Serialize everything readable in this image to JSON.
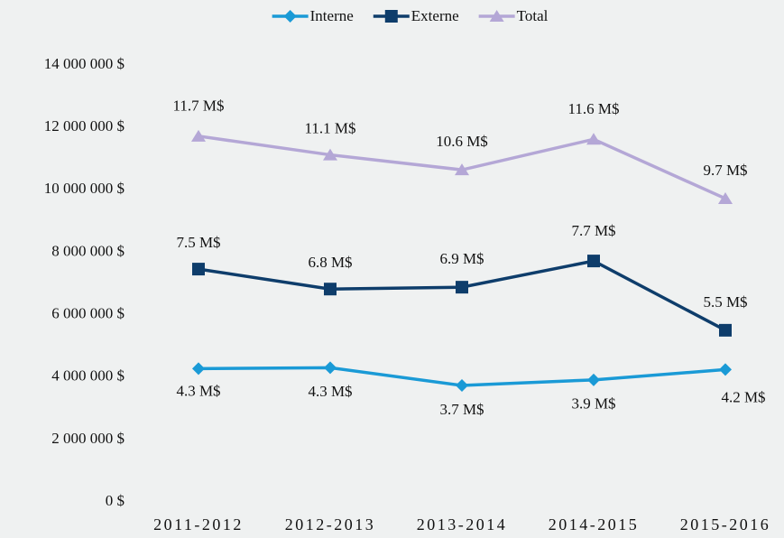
{
  "chart_data": {
    "type": "line",
    "categories": [
      "2011-2012",
      "2012-2013",
      "2013-2014",
      "2014-2015",
      "2015-2016"
    ],
    "series": [
      {
        "name": "Interne",
        "color": "#1a9ad6",
        "marker": "diamond",
        "values": [
          4270000,
          4300000,
          3730000,
          3910000,
          4240000
        ],
        "value_labels": [
          "4.3 M$",
          "4.3 M$",
          "3.7 M$",
          "3.9 M$",
          "4.2 M$"
        ]
      },
      {
        "name": "Externe",
        "color": "#0e3d6b",
        "marker": "square",
        "values": [
          7460000,
          6820000,
          6880000,
          7720000,
          5500000
        ],
        "value_labels": [
          "7.5 M$",
          "6.8 M$",
          "6.9 M$",
          "7.7 M$",
          "5.5 M$"
        ]
      },
      {
        "name": "Total",
        "color": "#b4a7d6",
        "marker": "triangle",
        "values": [
          11720000,
          11120000,
          10640000,
          11620000,
          9720000
        ],
        "value_labels": [
          "11.7 M$",
          "11.1 M$",
          "10.6 M$",
          "11.6 M$",
          "9.7 M$"
        ]
      }
    ],
    "ylim": [
      0,
      14000000
    ],
    "yticks": [
      {
        "value": 0,
        "label": "0 $"
      },
      {
        "value": 2000000,
        "label": "2 000 000 $"
      },
      {
        "value": 4000000,
        "label": "4 000 000 $"
      },
      {
        "value": 6000000,
        "label": "6 000 000 $"
      },
      {
        "value": 8000000,
        "label": "8 000 000 $"
      },
      {
        "value": 10000000,
        "label": "10 000 000 $"
      },
      {
        "value": 12000000,
        "label": "12 000 000 $"
      },
      {
        "value": 14000000,
        "label": "14 000 000 $"
      }
    ],
    "grid": false,
    "legend": "top"
  }
}
